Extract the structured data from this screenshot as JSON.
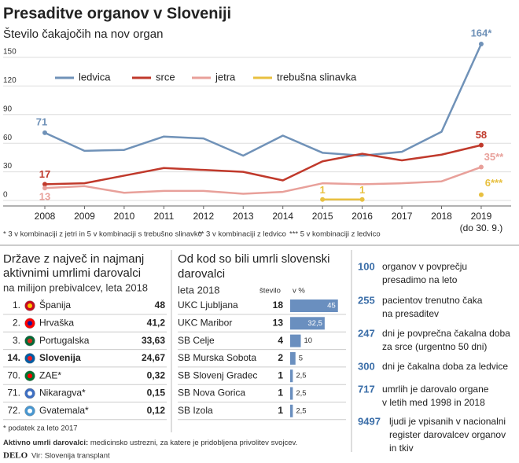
{
  "chart_data": {
    "type": "line",
    "title": "Presaditve organov v Sloveniji",
    "subtitle": "Število čakajočih na nov organ",
    "categories": [
      "2008",
      "2009",
      "2010",
      "2011",
      "2012",
      "2013",
      "2014",
      "2015",
      "2016",
      "2017",
      "2018",
      "2019"
    ],
    "x_note": "(do 30. 9.)",
    "ylim": [
      0,
      150
    ],
    "yticks": [
      0,
      30,
      60,
      90,
      120,
      150
    ],
    "grid": true,
    "legend": "top-left",
    "series": [
      {
        "name": "ledvica",
        "color": "#7092b8",
        "values": [
          71,
          52,
          53,
          67,
          65,
          47,
          68,
          50,
          47,
          51,
          72,
          164
        ],
        "value_labels": [
          "71",
          null,
          null,
          null,
          null,
          null,
          null,
          null,
          null,
          null,
          null,
          "164*"
        ]
      },
      {
        "name": "srce",
        "color": "#c0392b",
        "values": [
          17,
          18,
          26,
          34,
          32,
          30,
          21,
          41,
          49,
          42,
          48,
          58
        ],
        "value_labels": [
          "17",
          null,
          null,
          null,
          null,
          null,
          null,
          null,
          null,
          null,
          null,
          "58"
        ]
      },
      {
        "name": "jetra",
        "color": "#e8a09a",
        "values": [
          13,
          15,
          8,
          10,
          10,
          7,
          9,
          18,
          17,
          18,
          20,
          35
        ],
        "value_labels": [
          "13",
          null,
          null,
          null,
          null,
          null,
          null,
          null,
          null,
          null,
          null,
          "35**"
        ]
      },
      {
        "name": "trebušna slinavka",
        "color": "#e8c040",
        "values": [
          null,
          null,
          null,
          null,
          null,
          null,
          null,
          1,
          1,
          null,
          null,
          6
        ],
        "value_labels": [
          null,
          null,
          null,
          null,
          null,
          null,
          null,
          "1",
          "1",
          null,
          null,
          "6***"
        ]
      }
    ],
    "footnotes": [
      "* 3 v kombinaciji z jetri in 5 v kombinaciji s trebušno slinavko",
      "** 3 v kombinaciji z ledvico",
      "*** 5 v kombinaciji z ledvico"
    ]
  },
  "countries": {
    "title": [
      "Države z največ in najmanj",
      "aktivnimi umrlimi darovalci"
    ],
    "subtitle": "na milijon prebivalcev, leta 2018",
    "rows": [
      [
        "1.",
        "Španija",
        "48"
      ],
      [
        "2.",
        "Hrvaška",
        "41,2"
      ],
      [
        "3.",
        "Portugalska",
        "33,63"
      ],
      [
        "14.",
        "Slovenija",
        "24,67"
      ],
      [
        "70.",
        "ZAE*",
        "0,32"
      ],
      [
        "71.",
        "Nikaragva*",
        "0,15"
      ],
      [
        "72.",
        "Gvatemala*",
        "0,12"
      ]
    ],
    "note": "* podatek za leto 2017"
  },
  "hospitals": {
    "title": [
      "Od kod so bili umrli slovenski",
      "darovalci"
    ],
    "subtitle": "leta 2018",
    "headers": [
      "število",
      "v %"
    ],
    "names": [
      "UKC Ljubljana",
      "UKC Maribor",
      "SB Celje",
      "SB Murska Sobota",
      "SB Slovenj Gradec",
      "SB Nova Gorica",
      "SB Izola"
    ],
    "counts": [
      18,
      13,
      4,
      2,
      1,
      1,
      1
    ],
    "percent": [
      45,
      32.5,
      10,
      5,
      2.5,
      2.5,
      2.5
    ],
    "value_labels": [
      "45",
      "32,5",
      "10",
      "5",
      "2,5",
      "2,5",
      "2,5"
    ],
    "color": "#6a8fbf"
  },
  "facts": [
    {
      "number": "100",
      "text": [
        "organov v povprečju",
        "presadimo na leto"
      ]
    },
    {
      "number": "255",
      "text": [
        "pacientov trenutno čaka",
        "na presaditev"
      ]
    },
    {
      "number": "247",
      "text": [
        "dni je povprečna čakalna doba",
        "za srce (urgentno 50 dni)"
      ]
    },
    {
      "number": "300",
      "text": [
        "dni je čakalna doba za ledvice"
      ]
    },
    {
      "number": "717",
      "text": [
        "umrlih je darovalo organe",
        "v letih med 1998 in 2018"
      ]
    },
    {
      "number": "9497",
      "text": [
        "ljudi je vpisanih v nacionalni",
        "register darovalcev organov",
        "in tkiv"
      ]
    }
  ],
  "footer": {
    "definition_term": "Aktivno umrli darovalci:",
    "definition": " medicinsko ustrezni, za katere je pridobljena privolitev svojcev.",
    "brand": "DELO",
    "source": "Vir: Slovenija transplant"
  }
}
